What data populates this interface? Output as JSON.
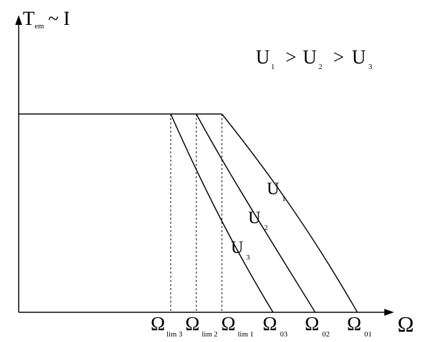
{
  "y_axis": {
    "main": "T",
    "sub": "em",
    "rest": "~ I"
  },
  "x_axis": {
    "label": "Ω"
  },
  "relation": {
    "u1": "U",
    "u1_sub": "1",
    "gt1": ">",
    "u2": "U",
    "u2_sub": "2",
    "gt2": ">",
    "u3": "U",
    "u3_sub": "3"
  },
  "curves": [
    {
      "main": "U",
      "sub": "1"
    },
    {
      "main": "U",
      "sub": "2"
    },
    {
      "main": "U",
      "sub": "3"
    }
  ],
  "x_ticks": [
    {
      "main": "Ω",
      "sub": "lim 3"
    },
    {
      "main": "Ω",
      "sub": "lim 2"
    },
    {
      "main": "Ω",
      "sub": "lim 1"
    },
    {
      "main": "Ω",
      "sub": "03"
    },
    {
      "main": "Ω",
      "sub": "02"
    },
    {
      "main": "Ω",
      "sub": "01"
    }
  ]
}
